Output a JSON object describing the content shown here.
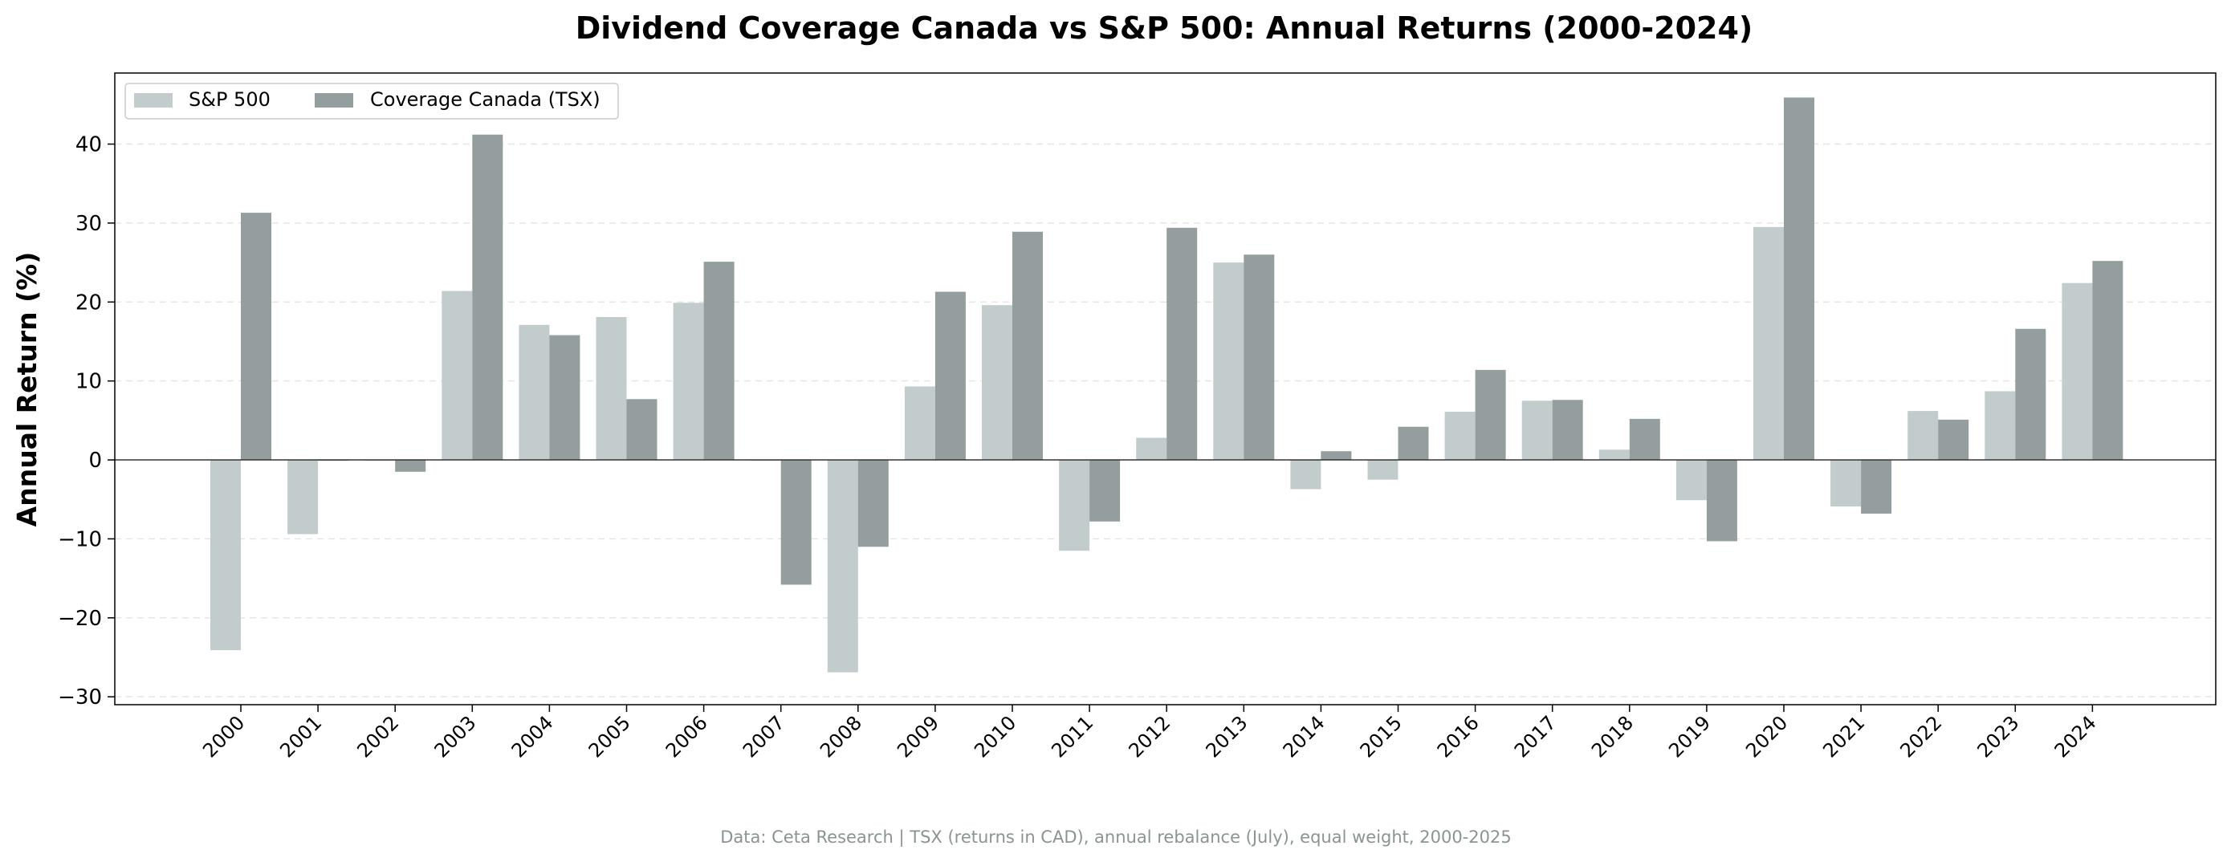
{
  "chart_data": {
    "type": "bar",
    "title": "Dividend Coverage Canada vs S&P 500: Annual Returns (2000-2024)",
    "xlabel": "",
    "ylabel": "Annual Return (%)",
    "ylim": [
      -31,
      49
    ],
    "yticks": [
      -30,
      -20,
      -10,
      0,
      10,
      20,
      30,
      40
    ],
    "grid": true,
    "legend_position": "top-left",
    "categories": [
      "2000",
      "2001",
      "2002",
      "2003",
      "2004",
      "2005",
      "2006",
      "2007",
      "2008",
      "2009",
      "2010",
      "2011",
      "2012",
      "2013",
      "2014",
      "2015",
      "2016",
      "2017",
      "2018",
      "2019",
      "2020",
      "2021",
      "2022",
      "2023",
      "2024"
    ],
    "series": [
      {
        "name": "S&P 500",
        "color": "#c3cccc",
        "values": [
          -24.1,
          -9.4,
          0.0,
          21.4,
          17.1,
          18.1,
          19.9,
          0.0,
          -26.9,
          9.3,
          19.6,
          -11.5,
          2.8,
          25.0,
          -3.7,
          -2.5,
          6.1,
          7.5,
          1.3,
          -5.1,
          29.5,
          -5.9,
          6.2,
          8.7,
          22.4
        ]
      },
      {
        "name": "Coverage Canada (TSX)",
        "color": "#949e9e",
        "values": [
          31.3,
          0.0,
          -1.5,
          41.2,
          15.8,
          7.7,
          25.1,
          -15.8,
          -11.0,
          21.3,
          28.9,
          -7.8,
          29.4,
          26.0,
          1.1,
          4.2,
          11.4,
          7.6,
          5.2,
          -10.3,
          45.9,
          -6.8,
          5.1,
          16.6,
          25.2
        ]
      }
    ],
    "footnote": "Data: Ceta Research | TSX (returns in CAD), annual rebalance (July), equal weight, 2000-2025"
  }
}
